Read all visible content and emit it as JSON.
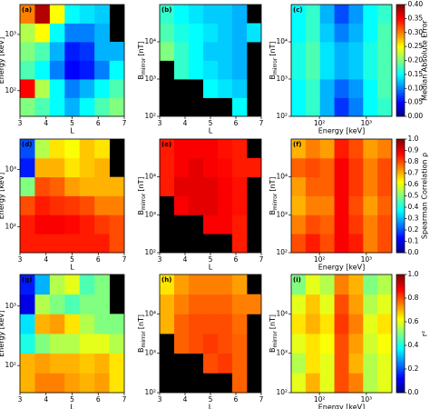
{
  "chart_data": [
    {
      "type": "heatmap",
      "title": "(a)",
      "x_label": "L",
      "y_label": [
        "Energy [keV]"
      ],
      "xscale": "linear",
      "xlim": [
        3,
        7
      ],
      "xticks": [
        3,
        4,
        5,
        6,
        7
      ],
      "yscale": "log",
      "ylim": [
        35,
        3400
      ],
      "yticks": [
        {
          "value": 100,
          "label": "10²"
        },
        {
          "value": 1000,
          "label": "10³"
        }
      ],
      "colormap": "jet",
      "facecolor": "#000000",
      "zlim": [
        0,
        0.4
      ],
      "z": [
        [
          0.2,
          0.18,
          0.15,
          0.12,
          0.15,
          0.18,
          0.2
        ],
        [
          0.35,
          0.22,
          0.15,
          0.1,
          0.12,
          0.15,
          0.18
        ],
        [
          0.18,
          0.15,
          0.1,
          0.05,
          0.06,
          0.1,
          0.15
        ],
        [
          0.2,
          0.18,
          0.12,
          0.06,
          0.07,
          0.12,
          0.12
        ],
        [
          0.22,
          0.25,
          0.15,
          0.1,
          0.1,
          0.12,
          null
        ],
        [
          0.3,
          0.38,
          0.25,
          0.15,
          0.14,
          0.13,
          null
        ]
      ]
    },
    {
      "type": "heatmap",
      "title": "(b)",
      "x_label": "L",
      "y_label": [
        "B",
        "mirror",
        "[nT]"
      ],
      "xscale": "linear",
      "xlim": [
        3,
        7
      ],
      "xticks": [
        3,
        4,
        5,
        6,
        7
      ],
      "yscale": "log",
      "ylim": [
        100,
        100000
      ],
      "yticks": [
        {
          "value": 100,
          "label": "10²"
        },
        {
          "value": 1000,
          "label": "10³"
        },
        {
          "value": 10000,
          "label": "10⁴"
        }
      ],
      "colormap": "jet",
      "facecolor": "#000000",
      "zlim": [
        0,
        0.4
      ],
      "z": [
        [
          null,
          null,
          null,
          null,
          null,
          0.15,
          null
        ],
        [
          null,
          null,
          null,
          0.15,
          0.14,
          0.13,
          null
        ],
        [
          null,
          0.17,
          0.15,
          0.14,
          0.13,
          0.12,
          null
        ],
        [
          0.2,
          0.17,
          0.15,
          0.13,
          0.13,
          0.12,
          null
        ],
        [
          0.18,
          0.16,
          0.15,
          0.14,
          0.13,
          0.12,
          0.14
        ],
        [
          0.17,
          0.15,
          0.14,
          0.13,
          0.13,
          0.12,
          null
        ]
      ]
    },
    {
      "type": "heatmap",
      "title": "(c)",
      "x_label": "Energy [keV]",
      "y_label": [
        "B",
        "mirror",
        "[nT]"
      ],
      "xscale": "log",
      "xlim": [
        25,
        3500
      ],
      "xticks": [
        {
          "value": 100,
          "label": "10²"
        },
        {
          "value": 1000,
          "label": "10³"
        }
      ],
      "yscale": "log",
      "ylim": [
        100,
        100000
      ],
      "yticks": [
        {
          "value": 100,
          "label": "10²"
        },
        {
          "value": 1000,
          "label": "10³"
        },
        {
          "value": 10000,
          "label": "10⁴"
        }
      ],
      "colormap": "jet",
      "facecolor": "#000000",
      "zlim": [
        0,
        0.4
      ],
      "z": [
        [
          0.15,
          0.17,
          0.12,
          0.07,
          0.1,
          0.15,
          0.17
        ],
        [
          0.15,
          0.17,
          0.12,
          0.09,
          0.11,
          0.15,
          0.18
        ],
        [
          0.16,
          0.18,
          0.14,
          0.12,
          0.13,
          0.16,
          0.18
        ],
        [
          0.16,
          0.18,
          0.14,
          0.12,
          0.13,
          0.16,
          0.18
        ],
        [
          0.15,
          0.17,
          0.13,
          0.1,
          0.12,
          0.15,
          0.18
        ],
        [
          0.15,
          0.17,
          0.12,
          0.08,
          0.11,
          0.15,
          0.17
        ]
      ],
      "colorbar": {
        "label": "Median Absolute Error",
        "ticks": [
          {
            "value": 0,
            "label": "0.00"
          },
          {
            "value": 0.05,
            "label": "0.05"
          },
          {
            "value": 0.1,
            "label": "0.10"
          },
          {
            "value": 0.15,
            "label": "0.15"
          },
          {
            "value": 0.2,
            "label": "0.20"
          },
          {
            "value": 0.25,
            "label": "0.25"
          },
          {
            "value": 0.3,
            "label": "0.30"
          },
          {
            "value": 0.35,
            "label": "0.35"
          },
          {
            "value": 0.4,
            "label": "0.40"
          }
        ]
      }
    },
    {
      "type": "heatmap",
      "title": "(d)",
      "x_label": "L",
      "y_label": [
        "Energy [keV]"
      ],
      "xscale": "linear",
      "xlim": [
        3,
        7
      ],
      "xticks": [
        3,
        4,
        5,
        6,
        7
      ],
      "yscale": "log",
      "ylim": [
        35,
        3400
      ],
      "yticks": [
        {
          "value": 100,
          "label": "10²"
        },
        {
          "value": 1000,
          "label": "10³"
        }
      ],
      "colormap": "jet",
      "facecolor": "#000000",
      "zlim": [
        0,
        1
      ],
      "z": [
        [
          0.85,
          0.85,
          0.85,
          0.85,
          0.85,
          0.85,
          0.8
        ],
        [
          0.85,
          0.88,
          0.88,
          0.87,
          0.85,
          0.82,
          0.8
        ],
        [
          0.8,
          0.85,
          0.83,
          0.82,
          0.8,
          0.75,
          0.75
        ],
        [
          0.5,
          0.8,
          0.78,
          0.72,
          0.7,
          0.7,
          0.7
        ],
        [
          0.15,
          0.7,
          0.7,
          0.65,
          0.68,
          0.7,
          null
        ],
        [
          0.2,
          0.55,
          0.65,
          0.62,
          0.68,
          0.65,
          null
        ]
      ]
    },
    {
      "type": "heatmap",
      "title": "(e)",
      "x_label": "L",
      "y_label": [
        "B",
        "mirror",
        "[nT]"
      ],
      "xscale": "linear",
      "xlim": [
        3,
        7
      ],
      "xticks": [
        3,
        4,
        5,
        6,
        7
      ],
      "yscale": "log",
      "ylim": [
        100,
        100000
      ],
      "yticks": [
        {
          "value": 100,
          "label": "10²"
        },
        {
          "value": 1000,
          "label": "10³"
        },
        {
          "value": 10000,
          "label": "10⁴"
        }
      ],
      "colormap": "jet",
      "facecolor": "#000000",
      "zlim": [
        0,
        1
      ],
      "z": [
        [
          null,
          null,
          null,
          null,
          null,
          0.85,
          null
        ],
        [
          null,
          null,
          null,
          0.88,
          0.88,
          0.85,
          null
        ],
        [
          null,
          0.88,
          0.9,
          0.9,
          0.88,
          0.86,
          null
        ],
        [
          0.85,
          0.9,
          0.9,
          0.9,
          0.88,
          0.86,
          null
        ],
        [
          0.85,
          0.88,
          0.9,
          0.88,
          0.87,
          0.85,
          0.85
        ],
        [
          0.85,
          0.88,
          0.88,
          0.88,
          0.86,
          0.85,
          null
        ]
      ]
    },
    {
      "type": "heatmap",
      "title": "(f)",
      "x_label": "Energy [keV]",
      "y_label": [
        "B",
        "mirror",
        "[nT]"
      ],
      "xscale": "log",
      "xlim": [
        25,
        3500
      ],
      "xticks": [
        {
          "value": 100,
          "label": "10²"
        },
        {
          "value": 1000,
          "label": "10³"
        }
      ],
      "yscale": "log",
      "ylim": [
        100,
        100000
      ],
      "yticks": [
        {
          "value": 100,
          "label": "10²"
        },
        {
          "value": 1000,
          "label": "10³"
        },
        {
          "value": 10000,
          "label": "10⁴"
        }
      ],
      "colormap": "jet",
      "facecolor": "#000000",
      "zlim": [
        0,
        1
      ],
      "z": [
        [
          0.8,
          0.85,
          0.8,
          0.88,
          0.85,
          0.75,
          0.8
        ],
        [
          0.75,
          0.8,
          0.78,
          0.88,
          0.82,
          0.75,
          0.8
        ],
        [
          0.7,
          0.75,
          0.75,
          0.88,
          0.8,
          0.72,
          0.78
        ],
        [
          0.72,
          0.78,
          0.78,
          0.88,
          0.82,
          0.75,
          0.8
        ],
        [
          0.78,
          0.8,
          0.78,
          0.88,
          0.82,
          0.75,
          0.8
        ],
        [
          0.7,
          0.75,
          0.72,
          0.85,
          0.8,
          0.72,
          0.75
        ]
      ],
      "colorbar": {
        "label": "Spearman Correlation ρ",
        "ticks": [
          {
            "value": 0,
            "label": "0.0"
          },
          0.1,
          0.2,
          0.3,
          0.4,
          0.5,
          0.6,
          0.7,
          0.8,
          0.9,
          {
            "value": 1,
            "label": "1.0"
          }
        ]
      }
    },
    {
      "type": "heatmap",
      "title": "(g)",
      "x_label": "L",
      "y_label": [
        "Energy [keV]"
      ],
      "xscale": "linear",
      "xlim": [
        3,
        7
      ],
      "xticks": [
        3,
        4,
        5,
        6,
        7
      ],
      "yscale": "log",
      "ylim": [
        35,
        3400
      ],
      "yticks": [
        {
          "value": 100,
          "label": "10²"
        },
        {
          "value": 1000,
          "label": "10³"
        }
      ],
      "colormap": "jet",
      "facecolor": "#000000",
      "zlim": [
        0,
        1
      ],
      "z": [
        [
          0.7,
          0.75,
          0.75,
          0.72,
          0.7,
          0.72,
          0.65
        ],
        [
          0.7,
          0.72,
          0.7,
          0.7,
          0.68,
          0.7,
          0.65
        ],
        [
          0.4,
          0.5,
          0.55,
          0.55,
          0.6,
          0.6,
          0.55
        ],
        [
          0.35,
          0.7,
          0.72,
          0.65,
          0.55,
          0.5,
          0.5
        ],
        [
          0.1,
          0.55,
          0.5,
          0.45,
          0.5,
          0.5,
          null
        ],
        [
          0.15,
          0.3,
          0.55,
          0.6,
          0.45,
          0.5,
          null
        ]
      ]
    },
    {
      "type": "heatmap",
      "title": "(h)",
      "x_label": "L",
      "y_label": [
        "B",
        "mirror",
        "[nT]"
      ],
      "xscale": "linear",
      "xlim": [
        3,
        7
      ],
      "xticks": [
        3,
        4,
        5,
        6,
        7
      ],
      "yscale": "log",
      "ylim": [
        100,
        100000
      ],
      "yticks": [
        {
          "value": 100,
          "label": "10²"
        },
        {
          "value": 1000,
          "label": "10³"
        },
        {
          "value": 10000,
          "label": "10⁴"
        }
      ],
      "colormap": "jet",
      "facecolor": "#000000",
      "zlim": [
        0,
        1
      ],
      "z": [
        [
          null,
          null,
          null,
          null,
          null,
          0.78,
          null
        ],
        [
          null,
          null,
          null,
          0.8,
          0.82,
          0.78,
          null
        ],
        [
          null,
          0.78,
          0.8,
          0.82,
          0.8,
          0.78,
          null
        ],
        [
          0.7,
          0.78,
          0.8,
          0.8,
          0.8,
          0.77,
          null
        ],
        [
          0.7,
          0.75,
          0.78,
          0.78,
          0.78,
          0.75,
          0.75
        ],
        [
          0.65,
          0.72,
          0.75,
          0.75,
          0.75,
          0.72,
          null
        ]
      ]
    },
    {
      "type": "heatmap",
      "title": "(i)",
      "x_label": "Energy [keV]",
      "y_label": [
        "B",
        "mirror",
        "[nT]"
      ],
      "xscale": "log",
      "xlim": [
        25,
        3500
      ],
      "xticks": [
        {
          "value": 100,
          "label": "10²"
        },
        {
          "value": 1000,
          "label": "10³"
        }
      ],
      "yscale": "log",
      "ylim": [
        100,
        100000
      ],
      "yticks": [
        {
          "value": 100,
          "label": "10²"
        },
        {
          "value": 1000,
          "label": "10³"
        },
        {
          "value": 10000,
          "label": "10⁴"
        }
      ],
      "colormap": "jet",
      "facecolor": "#000000",
      "zlim": [
        0,
        1
      ],
      "z": [
        [
          0.6,
          0.7,
          0.6,
          0.8,
          0.75,
          0.55,
          0.6
        ],
        [
          0.55,
          0.65,
          0.6,
          0.8,
          0.7,
          0.55,
          0.6
        ],
        [
          0.6,
          0.65,
          0.62,
          0.8,
          0.72,
          0.58,
          0.62
        ],
        [
          0.65,
          0.7,
          0.65,
          0.82,
          0.75,
          0.6,
          0.65
        ],
        [
          0.6,
          0.68,
          0.6,
          0.8,
          0.72,
          0.55,
          0.6
        ],
        [
          0.5,
          0.6,
          0.55,
          0.75,
          0.7,
          0.5,
          0.55
        ]
      ],
      "colorbar": {
        "label": "r²",
        "ticks": [
          {
            "value": 0,
            "label": "0.0"
          },
          0.2,
          0.4,
          0.6,
          0.8,
          {
            "value": 1,
            "label": "1.0"
          }
        ]
      }
    }
  ]
}
